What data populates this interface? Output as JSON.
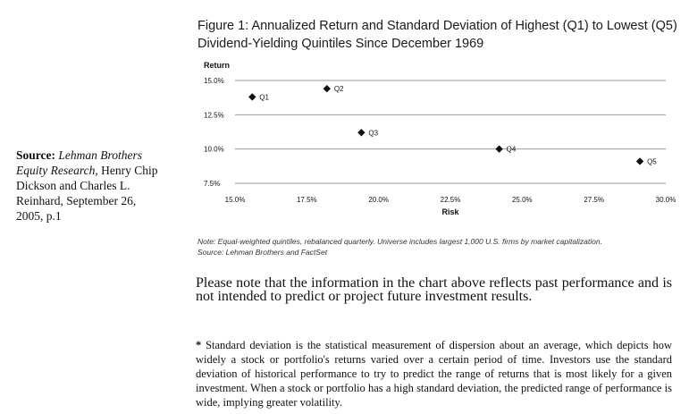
{
  "sidebar": {
    "source_label": "Source:",
    "source_italic": "Lehman Brothers Equity Research,",
    "source_rest": "Henry Chip Dickson and Charles L. Reinhard, September 26, 2005, p.1"
  },
  "figure": {
    "title": "Figure 1: Annualized Return and Standard Deviation of Highest (Q1) to Lowest (Q5) Dividend-Yielding Quintiles Since December 1969",
    "note": "Note: Equal-weighted quintiles, rebalanced quarterly. Universe includes largest 1,000 U.S. firms by market capitalization.",
    "source": "Source: Lehman Brothers and FactSet"
  },
  "chart_data": {
    "type": "scatter",
    "title": "Figure 1: Annualized Return and Standard Deviation of Highest (Q1) to Lowest (Q5) Dividend-Yielding Quintiles Since December 1969",
    "xlabel": "Risk",
    "ylabel": "Return",
    "xlim": [
      15.0,
      30.0
    ],
    "ylim": [
      7.5,
      15.0
    ],
    "x_ticks": [
      "15.0%",
      "17.5%",
      "20.0%",
      "22.5%",
      "25.0%",
      "27.5%",
      "30.0%"
    ],
    "y_ticks": [
      "15.0%",
      "12.5%",
      "10.0%",
      "7.5%"
    ],
    "y_tick_values": [
      15.0,
      12.5,
      10.0,
      7.5
    ],
    "x_tick_values": [
      15.0,
      17.5,
      20.0,
      22.5,
      25.0,
      27.5,
      30.0
    ],
    "grid": "horizontal",
    "points": [
      {
        "label": "Q1",
        "x": 15.6,
        "y": 13.8
      },
      {
        "label": "Q2",
        "x": 18.2,
        "y": 14.4
      },
      {
        "label": "Q3",
        "x": 19.4,
        "y": 11.2
      },
      {
        "label": "Q4",
        "x": 24.2,
        "y": 10.0
      },
      {
        "label": "Q5",
        "x": 29.1,
        "y": 9.1
      }
    ],
    "marker_color": "#111111",
    "grid_color": "#999999"
  },
  "body": {
    "disclaimer": "Please note that the information in the chart above reflects past performance and is not intended to predict or project future investment results.",
    "footnote_star": "*",
    "footnote": "Standard deviation is the statistical measurement of dispersion about an average, which depicts how widely a stock or portfolio's returns varied over a certain period of time. Investors use the standard deviation of historical performance to try to predict the range of returns that is most likely for a given investment. When a stock or portfolio has a high standard deviation, the predicted range of performance is wide, implying greater volatility."
  }
}
